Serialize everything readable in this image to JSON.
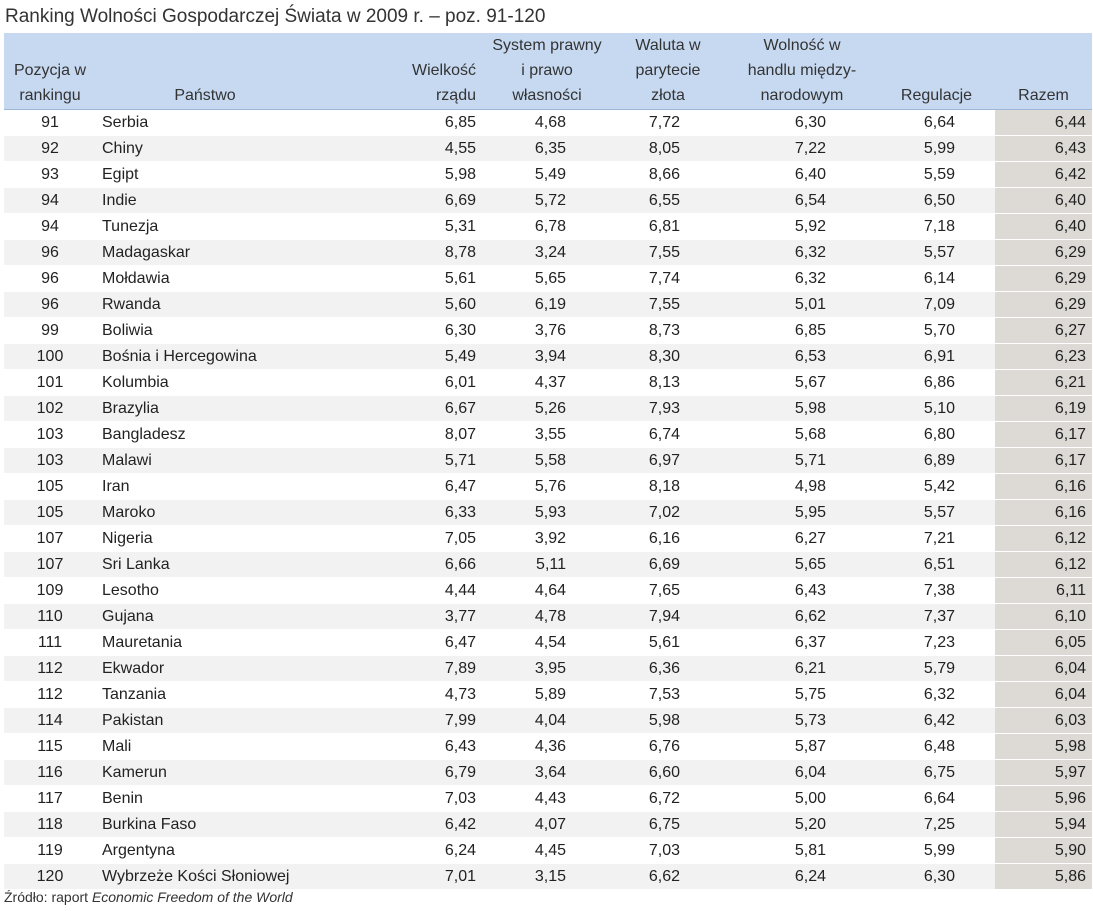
{
  "title": "Ranking Wolności Gospodarczej Świata w 2009 r. – poz. 91-120",
  "columns": {
    "rank": [
      "Pozycja w",
      "rankingu"
    ],
    "state": [
      "Państwo"
    ],
    "gov_size": [
      "Wielkość",
      "rządu"
    ],
    "legal": [
      "System prawny",
      "i prawo",
      "własności"
    ],
    "currency": [
      "Waluta w",
      "parytecie",
      "złota"
    ],
    "trade": [
      "Wolność w",
      "handlu między-",
      "narodowym"
    ],
    "regulation": [
      "Regulacje"
    ],
    "total": [
      "Razem"
    ]
  },
  "rows": [
    {
      "rank": "91",
      "state": "Serbia",
      "gov": "6,85",
      "legal": "4,68",
      "currency": "7,72",
      "trade": "6,30",
      "reg": "6,64",
      "total": "6,44"
    },
    {
      "rank": "92",
      "state": "Chiny",
      "gov": "4,55",
      "legal": "6,35",
      "currency": "8,05",
      "trade": "7,22",
      "reg": "5,99",
      "total": "6,43"
    },
    {
      "rank": "93",
      "state": "Egipt",
      "gov": "5,98",
      "legal": "5,49",
      "currency": "8,66",
      "trade": "6,40",
      "reg": "5,59",
      "total": "6,42"
    },
    {
      "rank": "94",
      "state": "Indie",
      "gov": "6,69",
      "legal": "5,72",
      "currency": "6,55",
      "trade": "6,54",
      "reg": "6,50",
      "total": "6,40"
    },
    {
      "rank": "94",
      "state": "Tunezja",
      "gov": "5,31",
      "legal": "6,78",
      "currency": "6,81",
      "trade": "5,92",
      "reg": "7,18",
      "total": "6,40"
    },
    {
      "rank": "96",
      "state": "Madagaskar",
      "gov": "8,78",
      "legal": "3,24",
      "currency": "7,55",
      "trade": "6,32",
      "reg": "5,57",
      "total": "6,29"
    },
    {
      "rank": "96",
      "state": "Mołdawia",
      "gov": "5,61",
      "legal": "5,65",
      "currency": "7,74",
      "trade": "6,32",
      "reg": "6,14",
      "total": "6,29"
    },
    {
      "rank": "96",
      "state": "Rwanda",
      "gov": "5,60",
      "legal": "6,19",
      "currency": "7,55",
      "trade": "5,01",
      "reg": "7,09",
      "total": "6,29"
    },
    {
      "rank": "99",
      "state": "Boliwia",
      "gov": "6,30",
      "legal": "3,76",
      "currency": "8,73",
      "trade": "6,85",
      "reg": "5,70",
      "total": "6,27"
    },
    {
      "rank": "100",
      "state": "Bośnia i Hercegowina",
      "gov": "5,49",
      "legal": "3,94",
      "currency": "8,30",
      "trade": "6,53",
      "reg": "6,91",
      "total": "6,23"
    },
    {
      "rank": "101",
      "state": "Kolumbia",
      "gov": "6,01",
      "legal": "4,37",
      "currency": "8,13",
      "trade": "5,67",
      "reg": "6,86",
      "total": "6,21"
    },
    {
      "rank": "102",
      "state": "Brazylia",
      "gov": "6,67",
      "legal": "5,26",
      "currency": "7,93",
      "trade": "5,98",
      "reg": "5,10",
      "total": "6,19"
    },
    {
      "rank": "103",
      "state": "Bangladesz",
      "gov": "8,07",
      "legal": "3,55",
      "currency": "6,74",
      "trade": "5,68",
      "reg": "6,80",
      "total": "6,17"
    },
    {
      "rank": "103",
      "state": "Malawi",
      "gov": "5,71",
      "legal": "5,58",
      "currency": "6,97",
      "trade": "5,71",
      "reg": "6,89",
      "total": "6,17"
    },
    {
      "rank": "105",
      "state": "Iran",
      "gov": "6,47",
      "legal": "5,76",
      "currency": "8,18",
      "trade": "4,98",
      "reg": "5,42",
      "total": "6,16"
    },
    {
      "rank": "105",
      "state": "Maroko",
      "gov": "6,33",
      "legal": "5,93",
      "currency": "7,02",
      "trade": "5,95",
      "reg": "5,57",
      "total": "6,16"
    },
    {
      "rank": "107",
      "state": "Nigeria",
      "gov": "7,05",
      "legal": "3,92",
      "currency": "6,16",
      "trade": "6,27",
      "reg": "7,21",
      "total": "6,12"
    },
    {
      "rank": "107",
      "state": "Sri Lanka",
      "gov": "6,66",
      "legal": "5,11",
      "currency": "6,69",
      "trade": "5,65",
      "reg": "6,51",
      "total": "6,12"
    },
    {
      "rank": "109",
      "state": "Lesotho",
      "gov": "4,44",
      "legal": "4,64",
      "currency": "7,65",
      "trade": "6,43",
      "reg": "7,38",
      "total": "6,11"
    },
    {
      "rank": "110",
      "state": "Gujana",
      "gov": "3,77",
      "legal": "4,78",
      "currency": "7,94",
      "trade": "6,62",
      "reg": "7,37",
      "total": "6,10"
    },
    {
      "rank": "111",
      "state": "Mauretania",
      "gov": "6,47",
      "legal": "4,54",
      "currency": "5,61",
      "trade": "6,37",
      "reg": "7,23",
      "total": "6,05"
    },
    {
      "rank": "112",
      "state": "Ekwador",
      "gov": "7,89",
      "legal": "3,95",
      "currency": "6,36",
      "trade": "6,21",
      "reg": "5,79",
      "total": "6,04"
    },
    {
      "rank": "112",
      "state": "Tanzania",
      "gov": "4,73",
      "legal": "5,89",
      "currency": "7,53",
      "trade": "5,75",
      "reg": "6,32",
      "total": "6,04"
    },
    {
      "rank": "114",
      "state": "Pakistan",
      "gov": "7,99",
      "legal": "4,04",
      "currency": "5,98",
      "trade": "5,73",
      "reg": "6,42",
      "total": "6,03"
    },
    {
      "rank": "115",
      "state": "Mali",
      "gov": "6,43",
      "legal": "4,36",
      "currency": "6,76",
      "trade": "5,87",
      "reg": "6,48",
      "total": "5,98"
    },
    {
      "rank": "116",
      "state": "Kamerun",
      "gov": "6,79",
      "legal": "3,64",
      "currency": "6,60",
      "trade": "6,04",
      "reg": "6,75",
      "total": "5,97"
    },
    {
      "rank": "117",
      "state": "Benin",
      "gov": "7,03",
      "legal": "4,43",
      "currency": "6,72",
      "trade": "5,00",
      "reg": "6,64",
      "total": "5,96"
    },
    {
      "rank": "118",
      "state": "Burkina Faso",
      "gov": "6,42",
      "legal": "4,07",
      "currency": "6,75",
      "trade": "5,20",
      "reg": "7,25",
      "total": "5,94"
    },
    {
      "rank": "119",
      "state": "Argentyna",
      "gov": "6,24",
      "legal": "4,45",
      "currency": "7,03",
      "trade": "5,81",
      "reg": "5,99",
      "total": "5,90"
    },
    {
      "rank": "120",
      "state": "Wybrzeże Kości Słoniowej",
      "gov": "7,01",
      "legal": "3,15",
      "currency": "6,62",
      "trade": "6,24",
      "reg": "6,30",
      "total": "5,86"
    }
  ],
  "source": {
    "prefix": "Źródło: raport ",
    "report": "Economic Freedom of the World"
  }
}
